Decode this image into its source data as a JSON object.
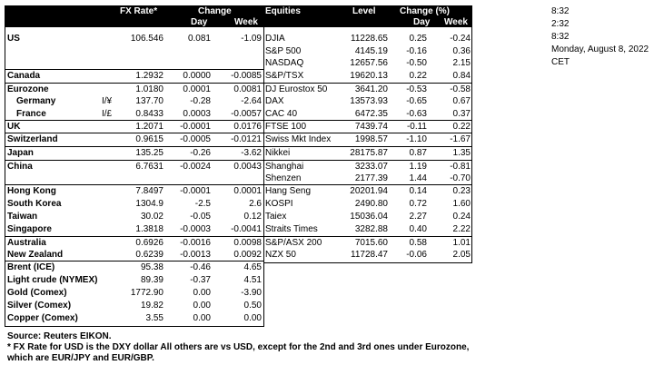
{
  "header": {
    "fx_rate": "FX Rate*",
    "change": "Change",
    "day": "Day",
    "week": "Week",
    "equities": "Equities",
    "level": "Level",
    "change_pct": "Change (%)",
    "day2": "Day",
    "week2": "Week"
  },
  "fx_rows": [
    {
      "name": "US",
      "sub": false,
      "note": "",
      "rate": "106.546",
      "day": "0.081",
      "week": "-1.09"
    },
    {
      "name": "Canada",
      "sub": false,
      "note": "",
      "rate": "1.2932",
      "day": "0.0000",
      "week": "-0.0085"
    },
    {
      "name": "Eurozone",
      "sub": false,
      "note": "",
      "rate": "1.0180",
      "day": "0.0001",
      "week": "0.0081"
    },
    {
      "name": "Germany",
      "sub": true,
      "note": "I/¥",
      "rate": "137.70",
      "day": "-0.28",
      "week": "-2.64"
    },
    {
      "name": "France",
      "sub": true,
      "note": "I/£",
      "rate": "0.8433",
      "day": "0.0003",
      "week": "-0.0057"
    },
    {
      "name": "UK",
      "sub": false,
      "note": "",
      "rate": "1.2071",
      "day": "-0.0001",
      "week": "0.0176"
    },
    {
      "name": "Switzerland",
      "sub": false,
      "note": "",
      "rate": "0.9615",
      "day": "-0.0005",
      "week": "-0.0121"
    },
    {
      "name": "Japan",
      "sub": false,
      "note": "",
      "rate": "135.25",
      "day": "-0.26",
      "week": "-3.62"
    },
    {
      "name": "China",
      "sub": false,
      "note": "",
      "rate": "6.7631",
      "day": "-0.0024",
      "week": "0.0043"
    },
    {
      "name": "Hong Kong",
      "sub": false,
      "note": "",
      "rate": "7.8497",
      "day": "-0.0001",
      "week": "0.0001"
    },
    {
      "name": "South Korea",
      "sub": false,
      "note": "",
      "rate": "1304.9",
      "day": "-2.5",
      "week": "2.6"
    },
    {
      "name": "Taiwan",
      "sub": false,
      "note": "",
      "rate": "30.02",
      "day": "-0.05",
      "week": "0.12"
    },
    {
      "name": "Singapore",
      "sub": false,
      "note": "",
      "rate": "1.3818",
      "day": "-0.0003",
      "week": "-0.0041"
    },
    {
      "name": "Australia",
      "sub": false,
      "note": "",
      "rate": "0.6926",
      "day": "-0.0016",
      "week": "0.0098"
    },
    {
      "name": "New Zealand",
      "sub": false,
      "note": "",
      "rate": "0.6239",
      "day": "-0.0013",
      "week": "0.0092"
    }
  ],
  "eq_rows": [
    {
      "name": "DJIA",
      "level": "11228.65",
      "day": "0.25",
      "week": "-0.24"
    },
    {
      "name": "S&P 500",
      "level": "4145.19",
      "day": "-0.16",
      "week": "0.36"
    },
    {
      "name": "NASDAQ",
      "level": "12657.56",
      "day": "-0.50",
      "week": "2.15"
    },
    {
      "name": "S&P/TSX",
      "level": "19620.13",
      "day": "0.22",
      "week": "0.84"
    },
    {
      "name": "DJ Eurostox 50",
      "level": "3641.20",
      "day": "-0.53",
      "week": "-0.58"
    },
    {
      "name": "DAX",
      "level": "13573.93",
      "day": "-0.65",
      "week": "0.67"
    },
    {
      "name": "CAC 40",
      "level": "6472.35",
      "day": "-0.63",
      "week": "0.37"
    },
    {
      "name": "FTSE 100",
      "level": "7439.74",
      "day": "-0.11",
      "week": "0.22"
    },
    {
      "name": "Swiss Mkt Index",
      "level": "1998.57",
      "day": "-1.10",
      "week": "-1.67"
    },
    {
      "name": "Nikkei",
      "level": "28175.87",
      "day": "0.87",
      "week": "1.35"
    },
    {
      "name": "Shanghai",
      "level": "3233.07",
      "day": "1.19",
      "week": "-0.81"
    },
    {
      "name": "Shenzen",
      "level": "2177.39",
      "day": "1.44",
      "week": "-0.70"
    },
    {
      "name": "Hang Seng",
      "level": "20201.94",
      "day": "0.14",
      "week": "0.23"
    },
    {
      "name": "KOSPI",
      "level": "2490.80",
      "day": "0.72",
      "week": "1.60"
    },
    {
      "name": "Taiex",
      "level": "15036.04",
      "day": "2.27",
      "week": "0.24"
    },
    {
      "name": "Straits Times",
      "level": "3282.88",
      "day": "0.40",
      "week": "2.22"
    },
    {
      "name": "S&P/ASX 200",
      "level": "7015.60",
      "day": "0.58",
      "week": "1.01"
    },
    {
      "name": "NZX 50",
      "level": "11728.47",
      "day": "-0.06",
      "week": "2.05"
    }
  ],
  "commodities": [
    {
      "name": "Brent (ICE)",
      "level": "95.38",
      "day": "-0.46",
      "week": "4.65"
    },
    {
      "name": "Light crude (NYMEX)",
      "level": "89.39",
      "day": "-0.37",
      "week": "4.51"
    },
    {
      "name": "Gold (Comex)",
      "level": "1772.90",
      "day": "0.00",
      "week": "-3.90"
    },
    {
      "name": "Silver (Comex)",
      "level": "19.82",
      "day": "0.00",
      "week": "0.50"
    },
    {
      "name": "Copper (Comex)",
      "level": "3.55",
      "day": "0.00",
      "week": "0.00"
    }
  ],
  "footer": {
    "source": "Source:  Reuters EIKON.",
    "note1": "* FX Rate for USD is the DXY dollar  All others are vs USD, except for the 2nd and 3rd ones under Eurozone,",
    "note2": "  which are EUR/JPY and EUR/GBP."
  },
  "side": {
    "t1": "8:32",
    "t2": "2:32",
    "t3": "8:32",
    "date": "Monday, August 8, 2022",
    "tz": "CET"
  }
}
